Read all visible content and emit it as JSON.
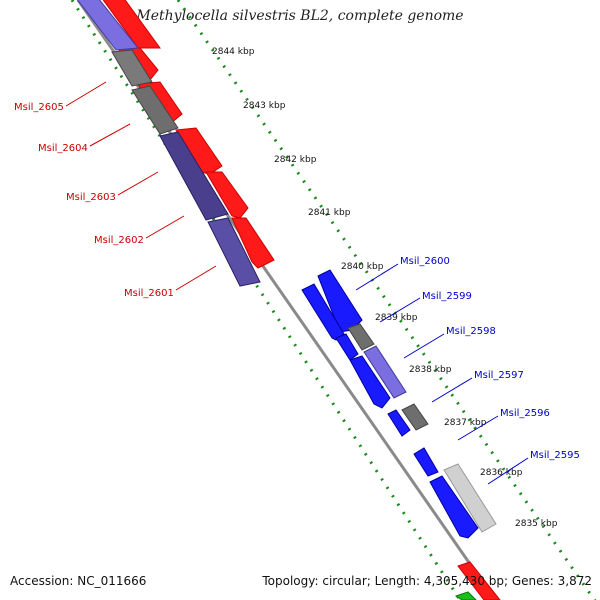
{
  "title": "Methylocella silvestris BL2, complete genome",
  "footer": {
    "accession": "Accession: NC_011666",
    "summary": "Topology: circular; Length: 4,305,430 bp; Genes: 3,872"
  },
  "colors": {
    "forward_gene": "#ff0000",
    "reverse_gene": "#0000ff",
    "reverse_label": "#0000cc",
    "forward_label": "#cc0000",
    "tick": "#1a7a1a",
    "backbone": "#888888",
    "gray_block": "#777777",
    "purple_block": "#6a5fc8",
    "light_block": "#cccccc"
  },
  "scale_labels": [
    "2844 kbp",
    "2843 kbp",
    "2842 kbp",
    "2841 kbp",
    "2840 kbp",
    "2839 kbp",
    "2838 kbp",
    "2837 kbp",
    "2836 kbp",
    "2835 kbp"
  ],
  "left_genes": [
    "Msil_2605",
    "Msil_2604",
    "Msil_2603",
    "Msil_2602",
    "Msil_2601"
  ],
  "right_genes": [
    "Msil_2600",
    "Msil_2599",
    "Msil_2598",
    "Msil_2597",
    "Msil_2596",
    "Msil_2595"
  ]
}
